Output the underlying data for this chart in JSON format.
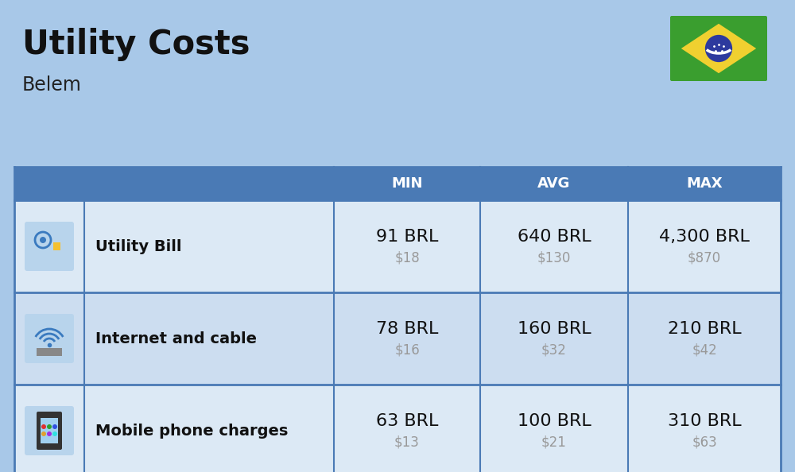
{
  "title": "Utility Costs",
  "subtitle": "Belem",
  "background_color": "#a8c8e8",
  "header_color": "#4a7ab5",
  "header_text_color": "#ffffff",
  "row_color_light": "#dce9f5",
  "row_color_dark": "#ccddf0",
  "cell_border_color": "#4a7ab5",
  "columns": [
    "MIN",
    "AVG",
    "MAX"
  ],
  "rows": [
    {
      "label": "Utility Bill",
      "icon": "utility",
      "min_brl": "91 BRL",
      "min_usd": "$18",
      "avg_brl": "640 BRL",
      "avg_usd": "$130",
      "max_brl": "4,300 BRL",
      "max_usd": "$870"
    },
    {
      "label": "Internet and cable",
      "icon": "internet",
      "min_brl": "78 BRL",
      "min_usd": "$16",
      "avg_brl": "160 BRL",
      "avg_usd": "$32",
      "max_brl": "210 BRL",
      "max_usd": "$42"
    },
    {
      "label": "Mobile phone charges",
      "icon": "mobile",
      "min_brl": "63 BRL",
      "min_usd": "$13",
      "avg_brl": "100 BRL",
      "avg_usd": "$21",
      "max_brl": "310 BRL",
      "max_usd": "$63"
    }
  ],
  "flag_colors": {
    "green": "#3a9e2f",
    "yellow": "#f0d030",
    "blue": "#2d3a9e",
    "white": "#ffffff"
  },
  "title_fontsize": 30,
  "subtitle_fontsize": 17,
  "header_fontsize": 13,
  "label_fontsize": 14,
  "value_fontsize": 16,
  "usd_fontsize": 12,
  "usd_color": "#999999"
}
